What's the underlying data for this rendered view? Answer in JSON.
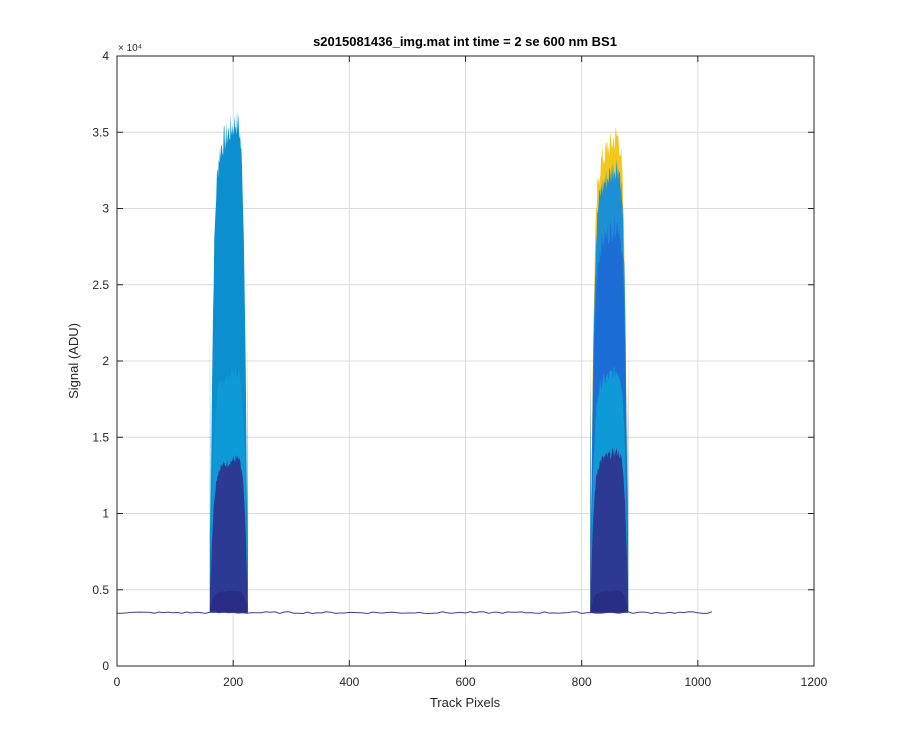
{
  "chart_data": {
    "type": "area",
    "title": "s2015081436_img.mat int time = 2 se  600 nm BS1",
    "xlabel": "Track Pixels",
    "ylabel": "Signal (ADU)",
    "xlim": [
      0,
      1200
    ],
    "ylim": [
      0,
      40000
    ],
    "y_exponent_label": "× 10⁴",
    "grid": true,
    "x_ticks": [
      0,
      200,
      400,
      600,
      800,
      1000,
      1200
    ],
    "x_tick_labels": [
      "0",
      "200",
      "400",
      "600",
      "800",
      "1000",
      "1200"
    ],
    "y_ticks": [
      0,
      5000,
      10000,
      15000,
      20000,
      25000,
      30000,
      35000,
      40000
    ],
    "y_tick_labels": [
      "0",
      "0.5",
      "1",
      "1.5",
      "2",
      "2.5",
      "3",
      "3.5",
      "4"
    ],
    "baseline": 3500,
    "x_range": [
      0,
      1024
    ],
    "peaks": [
      {
        "x_start": 160,
        "x_end": 225,
        "layers": [
          {
            "color": "#0c8fce",
            "max": 37000
          },
          {
            "color": "#0e9ad6",
            "max": 20000
          },
          {
            "color": "#2c3a93",
            "max": 14000
          },
          {
            "color": "#2a2d85",
            "max": 5000
          }
        ]
      },
      {
        "x_start": 815,
        "x_end": 880,
        "layers": [
          {
            "color": "#f2c81c",
            "max": 36000
          },
          {
            "color": "#b5be3a",
            "max": 33000
          },
          {
            "color": "#1d8fd4",
            "max": 34000
          },
          {
            "color": "#1c6ed6",
            "max": 30000
          },
          {
            "color": "#0e9ad6",
            "max": 20000
          },
          {
            "color": "#2c3a93",
            "max": 14500
          },
          {
            "color": "#2a2d85",
            "max": 5000
          }
        ]
      }
    ]
  }
}
